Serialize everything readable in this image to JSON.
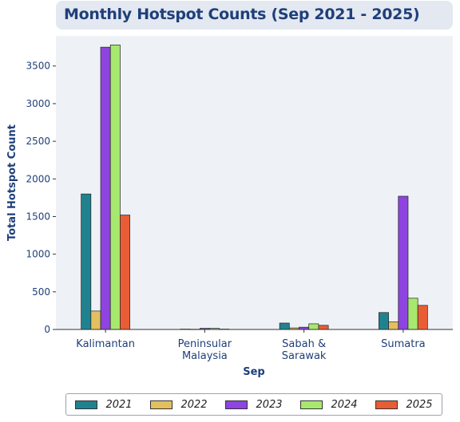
{
  "chart_data": {
    "type": "bar",
    "title": "Monthly Hotspot Counts (Sep 2021 - 2025)",
    "xlabel": "Sep",
    "ylabel": "Total Hotspot Count",
    "categories": [
      "Kalimantan",
      "Peninsular\nMalaysia",
      "Sabah &\nSarawak",
      "Sumatra"
    ],
    "ylim": [
      0,
      3900
    ],
    "yticks": [
      0,
      500,
      1000,
      1500,
      2000,
      2500,
      3000,
      3500
    ],
    "grid": false,
    "legend_position": "bottom",
    "series": [
      {
        "name": "2021",
        "color": "#21828f",
        "values": [
          1800,
          5,
          85,
          225
        ]
      },
      {
        "name": "2022",
        "color": "#e3c05f",
        "values": [
          245,
          3,
          20,
          100
        ]
      },
      {
        "name": "2023",
        "color": "#8e44e0",
        "values": [
          3750,
          15,
          30,
          1770
        ]
      },
      {
        "name": "2024",
        "color": "#a7e86f",
        "values": [
          3780,
          15,
          75,
          415
        ]
      },
      {
        "name": "2025",
        "color": "#e85d35",
        "values": [
          1520,
          5,
          55,
          320
        ]
      }
    ]
  }
}
